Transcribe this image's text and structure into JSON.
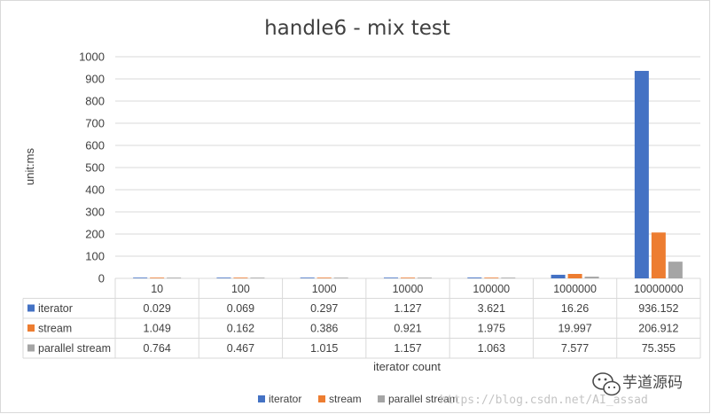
{
  "chart_data": {
    "type": "bar",
    "title": "handle6 - mix test",
    "xlabel": "iterator count",
    "ylabel": "unit:ms",
    "ylim": [
      0,
      1000
    ],
    "yticks": [
      0,
      100,
      200,
      300,
      400,
      500,
      600,
      700,
      800,
      900,
      1000
    ],
    "grid": true,
    "legend_position": "bottom",
    "categories": [
      "10",
      "100",
      "1000",
      "10000",
      "100000",
      "1000000",
      "10000000"
    ],
    "series": [
      {
        "name": "iterator",
        "color": "#4472c4",
        "values": [
          0.029,
          0.069,
          0.297,
          1.127,
          3.621,
          16.26,
          936.152
        ]
      },
      {
        "name": "stream",
        "color": "#ed7d31",
        "values": [
          1.049,
          0.162,
          0.386,
          0.921,
          1.975,
          19.997,
          206.912
        ]
      },
      {
        "name": "parallel stream",
        "color": "#a5a5a5",
        "values": [
          0.764,
          0.467,
          1.015,
          1.157,
          1.063,
          7.577,
          75.355
        ]
      }
    ],
    "data_table": true
  },
  "watermark": {
    "url": "https://blog.csdn.net/AI_assad",
    "brand": "芋道源码",
    "icon": "wechat-icon"
  }
}
